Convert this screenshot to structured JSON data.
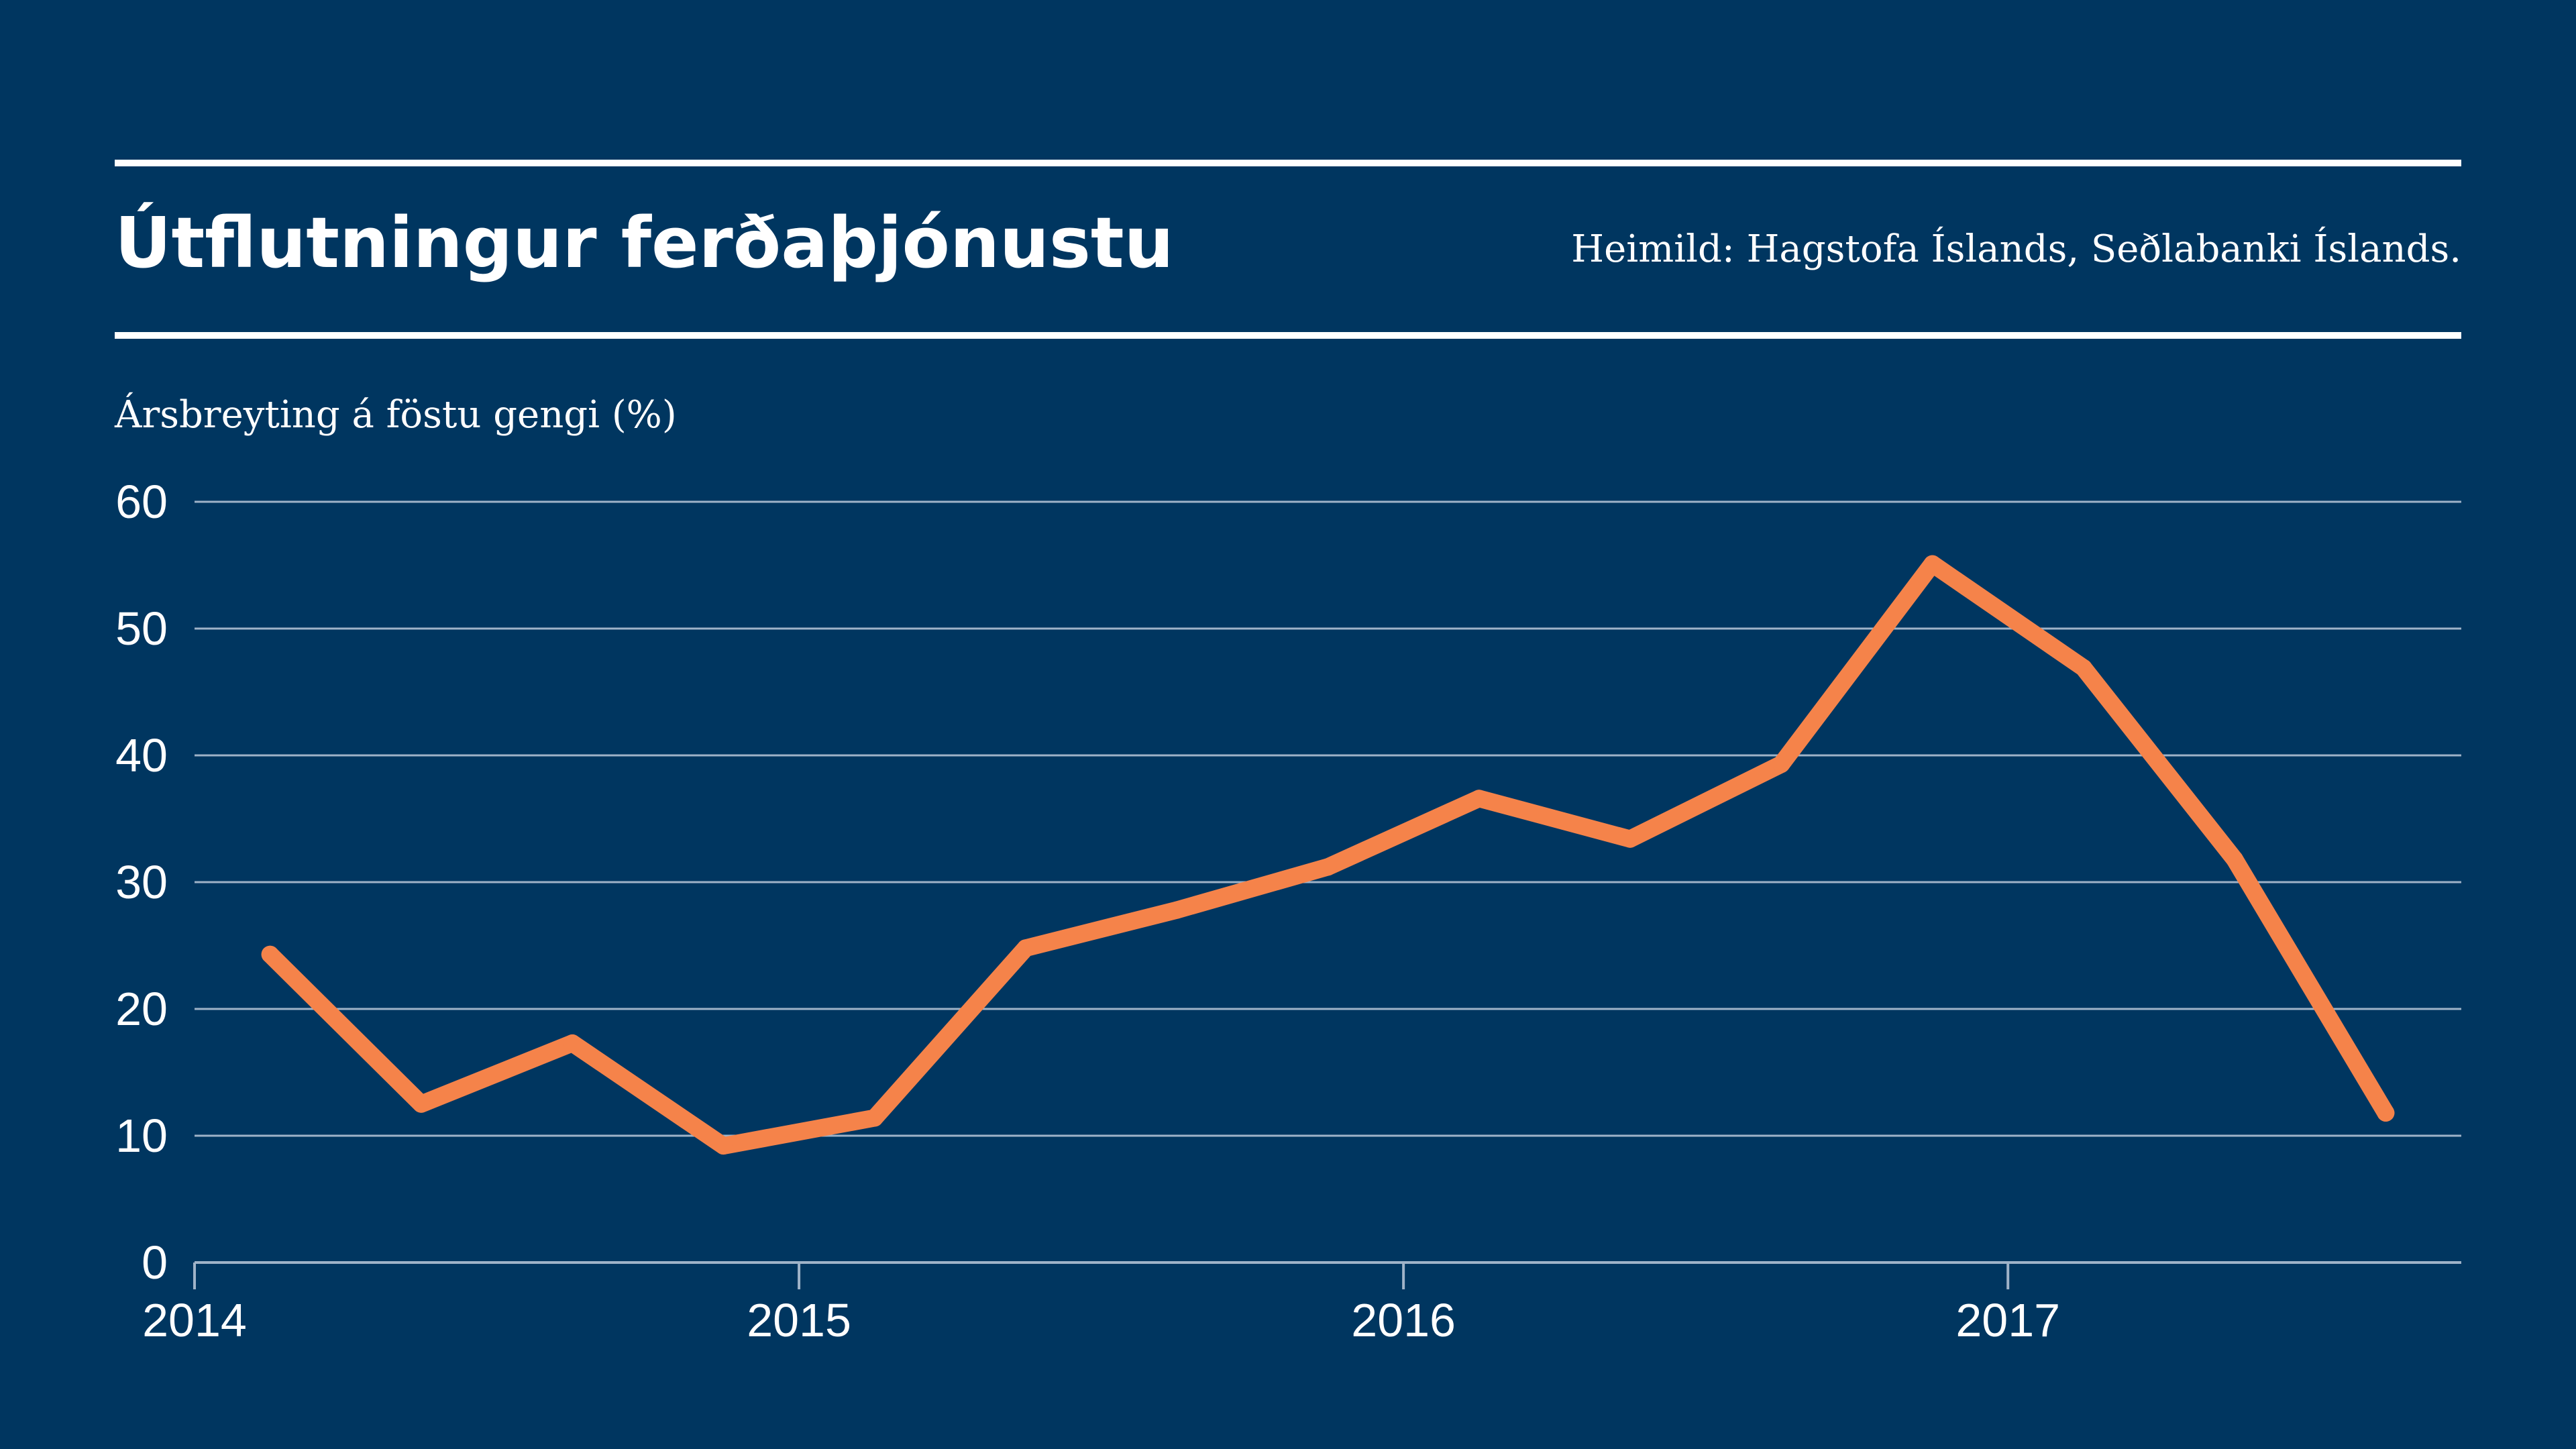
{
  "header": {
    "title": "Útflutningur ferðaþjónustu",
    "source": "Heimild: Hagstofa Íslands, Seðlabanki Íslands."
  },
  "colors": {
    "background": "#003660",
    "line": "#F5834A",
    "text": "#FFFFFF",
    "grid": "#9FB3C8"
  },
  "chart_data": {
    "type": "line",
    "title": "Útflutningur ferðaþjónustu",
    "ylabel": "Ársbreyting á föstu gengi (%)",
    "xlabel": "",
    "x_ticks": [
      "2014",
      "2015",
      "2016",
      "2017"
    ],
    "y_ticks": [
      "0",
      "10",
      "20",
      "30",
      "40",
      "50",
      "60"
    ],
    "ylim": [
      0,
      60
    ],
    "xlim": [
      2014.0,
      2017.75
    ],
    "grid": true,
    "x": [
      2014.125,
      2014.375,
      2014.625,
      2014.875,
      2015.125,
      2015.375,
      2015.625,
      2015.875,
      2016.125,
      2016.375,
      2016.625,
      2016.875,
      2017.125,
      2017.375,
      2017.625
    ],
    "series": [
      {
        "values": [
          24.3,
          12.5,
          17.3,
          9.2,
          11.4,
          24.8,
          27.8,
          31.2,
          36.6,
          33.4,
          39.3,
          55.1,
          46.9,
          31.8,
          11.8
        ]
      }
    ]
  }
}
